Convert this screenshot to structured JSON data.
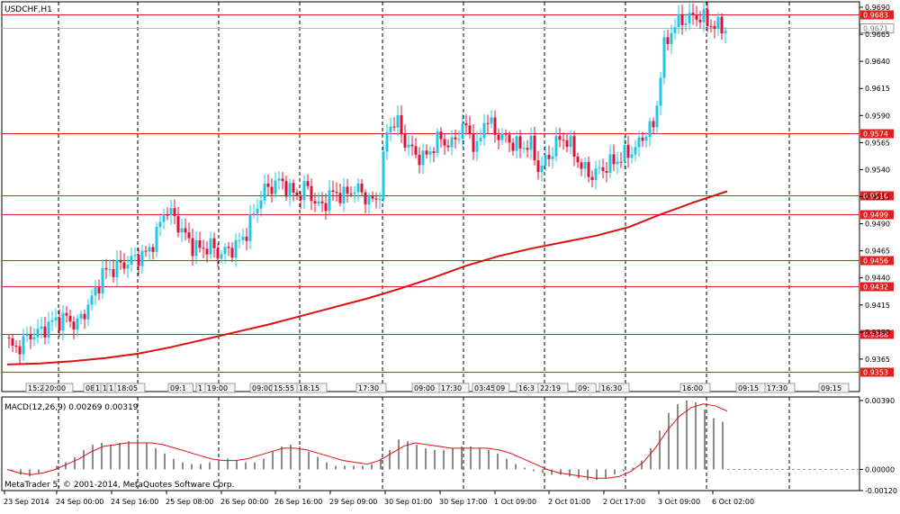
{
  "window": {
    "title": "USDCHF,H1",
    "copyright": "MetaTrader 5, © 2001-2014, MetaQuotes Software Corp."
  },
  "colors": {
    "up_candle": "#1ec8e0",
    "down_candle": "#e0103a",
    "level_line": "#e02020",
    "ma_line": "#e01010",
    "macd_hist": "#8c8c8c",
    "signal_line": "#e01010",
    "grid": "#000000",
    "bid_line": "#b8b8b8"
  },
  "chart_data": [
    {
      "type": "candlestick",
      "title": "USDCHF,H1",
      "ylim": [
        0.9335,
        0.9695
      ],
      "y_ticks": [
        "0.9690",
        "0.9665",
        "0.9640",
        "0.9615",
        "0.9590",
        "0.9565",
        "0.9540",
        "0.9515",
        "0.9490",
        "0.9465",
        "0.9440",
        "0.9415",
        "0.9390",
        "0.9365"
      ],
      "grid": "vertical dashed",
      "horizontal_levels": [
        {
          "value": 0.9683,
          "label": "0.9683"
        },
        {
          "value": 0.9574,
          "label": "0.9574"
        },
        {
          "value": 0.9516,
          "label": "0.9516"
        },
        {
          "value": 0.9499,
          "label": "0.9499"
        },
        {
          "value": 0.9456,
          "label": "0.9456"
        },
        {
          "value": 0.9432,
          "label": "0.9432"
        },
        {
          "value": 0.9388,
          "label": "0.9388"
        },
        {
          "value": 0.9353,
          "label": "0.9353"
        }
      ],
      "current_price": {
        "value": 0.9671,
        "label": "0.9671"
      },
      "path_points": [
        0.9385,
        0.9373,
        0.9381,
        0.9388,
        0.939,
        0.9398,
        0.9401,
        0.9403,
        0.9396,
        0.941,
        0.9425,
        0.9445,
        0.9448,
        0.9452,
        0.9455,
        0.946,
        0.9463,
        0.948,
        0.9505,
        0.9495,
        0.9482,
        0.947,
        0.9466,
        0.947,
        0.9462,
        0.9465,
        0.947,
        0.948,
        0.95,
        0.952,
        0.9525,
        0.953,
        0.952,
        0.9516,
        0.9525,
        0.9505,
        0.951,
        0.952,
        0.9515,
        0.9522,
        0.952,
        0.951,
        0.9513,
        0.958,
        0.9585,
        0.9565,
        0.9555,
        0.955,
        0.956,
        0.957,
        0.956,
        0.9575,
        0.958,
        0.9555,
        0.959,
        0.9575,
        0.957,
        0.9565,
        0.956,
        0.9565,
        0.954,
        0.955,
        0.9565,
        0.957,
        0.9555,
        0.954,
        0.9535,
        0.954,
        0.9545,
        0.955,
        0.9555,
        0.956,
        0.9575,
        0.958,
        0.965,
        0.967,
        0.9678,
        0.968,
        0.9682,
        0.9676,
        0.9672,
        0.9671
      ],
      "moving_average": [
        0.936,
        0.9361,
        0.9363,
        0.9366,
        0.937,
        0.9376,
        0.9383,
        0.939,
        0.9397,
        0.9405,
        0.9413,
        0.9421,
        0.943,
        0.944,
        0.9451,
        0.946,
        0.9467,
        0.9473,
        0.9479,
        0.9487,
        0.9499,
        0.951,
        0.952
      ],
      "x_tick_labels": [
        "23 Sep 2014",
        "24 Sep 00:00",
        "24 Sep 16:00",
        "25 Sep 08:00",
        "26 Sep 00:00",
        "26 Sep 16:00",
        "29 Sep 09:00",
        "30 Sep 01:00",
        "30 Sep 17:00",
        "1 Oct 09:00",
        "2 Oct 01:00",
        "2 Oct 17:00",
        "3 Oct 09:00",
        "6 Oct 02:00"
      ],
      "time_tags": [
        "15:2",
        "20:00",
        "08",
        "1",
        "1",
        "1",
        "18:05",
        "09:1",
        "1",
        "19:00",
        "09:00",
        "15:55",
        "18:15",
        "17:30",
        "09:00",
        "17:30",
        "03:45",
        "09",
        "16:3",
        "22:19",
        "09:",
        "16:30",
        "16:00",
        "09:15",
        "17:30",
        "09:15"
      ]
    },
    {
      "type": "bar",
      "title": "MACD(12,26,9) 0.00269 0.00319",
      "ylim": [
        -0.0012,
        0.0041
      ],
      "y_ticks": [
        "0.00390",
        "0.00000",
        "-0.00120"
      ],
      "histogram": [
        -0.0001,
        -0.0003,
        -0.0004,
        -0.0002,
        0.0,
        0.0002,
        0.0004,
        0.0007,
        0.0011,
        0.0014,
        0.0015,
        0.0014,
        0.0015,
        0.0016,
        0.0017,
        0.0015,
        0.0012,
        0.0009,
        0.0006,
        0.0004,
        0.0003,
        0.0003,
        0.0004,
        0.0005,
        0.0006,
        0.0005,
        0.0004,
        0.0004,
        0.0006,
        0.001,
        0.0013,
        0.0014,
        0.0013,
        0.001,
        0.0007,
        0.0004,
        0.0002,
        0.0002,
        0.0002,
        0.0002,
        0.0003,
        0.0006,
        0.0011,
        0.0017,
        0.0016,
        0.0014,
        0.0012,
        0.0011,
        0.0011,
        0.0012,
        0.0013,
        0.0013,
        0.0012,
        0.0011,
        0.0009,
        0.0006,
        0.0003,
        0.0001,
        -0.0001,
        -0.0002,
        -0.0003,
        -0.0003,
        -0.0004,
        -0.0005,
        -0.0006,
        -0.0006,
        -0.0005,
        -0.0003,
        -0.0001,
        0.0001,
        0.0005,
        0.0012,
        0.0022,
        0.0032,
        0.0037,
        0.0039,
        0.0038,
        0.0034,
        0.0029,
        0.0027
      ],
      "signal": [
        0.0,
        -0.0002,
        -0.0003,
        -0.0002,
        0.0,
        0.0003,
        0.0006,
        0.001,
        0.0013,
        0.0014,
        0.0015,
        0.0015,
        0.0015,
        0.0014,
        0.0012,
        0.001,
        0.0008,
        0.0006,
        0.0005,
        0.0005,
        0.0006,
        0.0008,
        0.001,
        0.0012,
        0.0012,
        0.0011,
        0.0009,
        0.0007,
        0.0005,
        0.0004,
        0.0003,
        0.0005,
        0.0009,
        0.0013,
        0.0015,
        0.0014,
        0.0013,
        0.0012,
        0.0012,
        0.0012,
        0.0012,
        0.0011,
        0.0009,
        0.0006,
        0.0003,
        0.0,
        -0.0002,
        -0.0003,
        -0.0004,
        -0.0005,
        -0.0005,
        -0.0004,
        -0.0001,
        0.0004,
        0.0012,
        0.0022,
        0.003,
        0.0035,
        0.0037,
        0.0036,
        0.0033
      ]
    }
  ]
}
